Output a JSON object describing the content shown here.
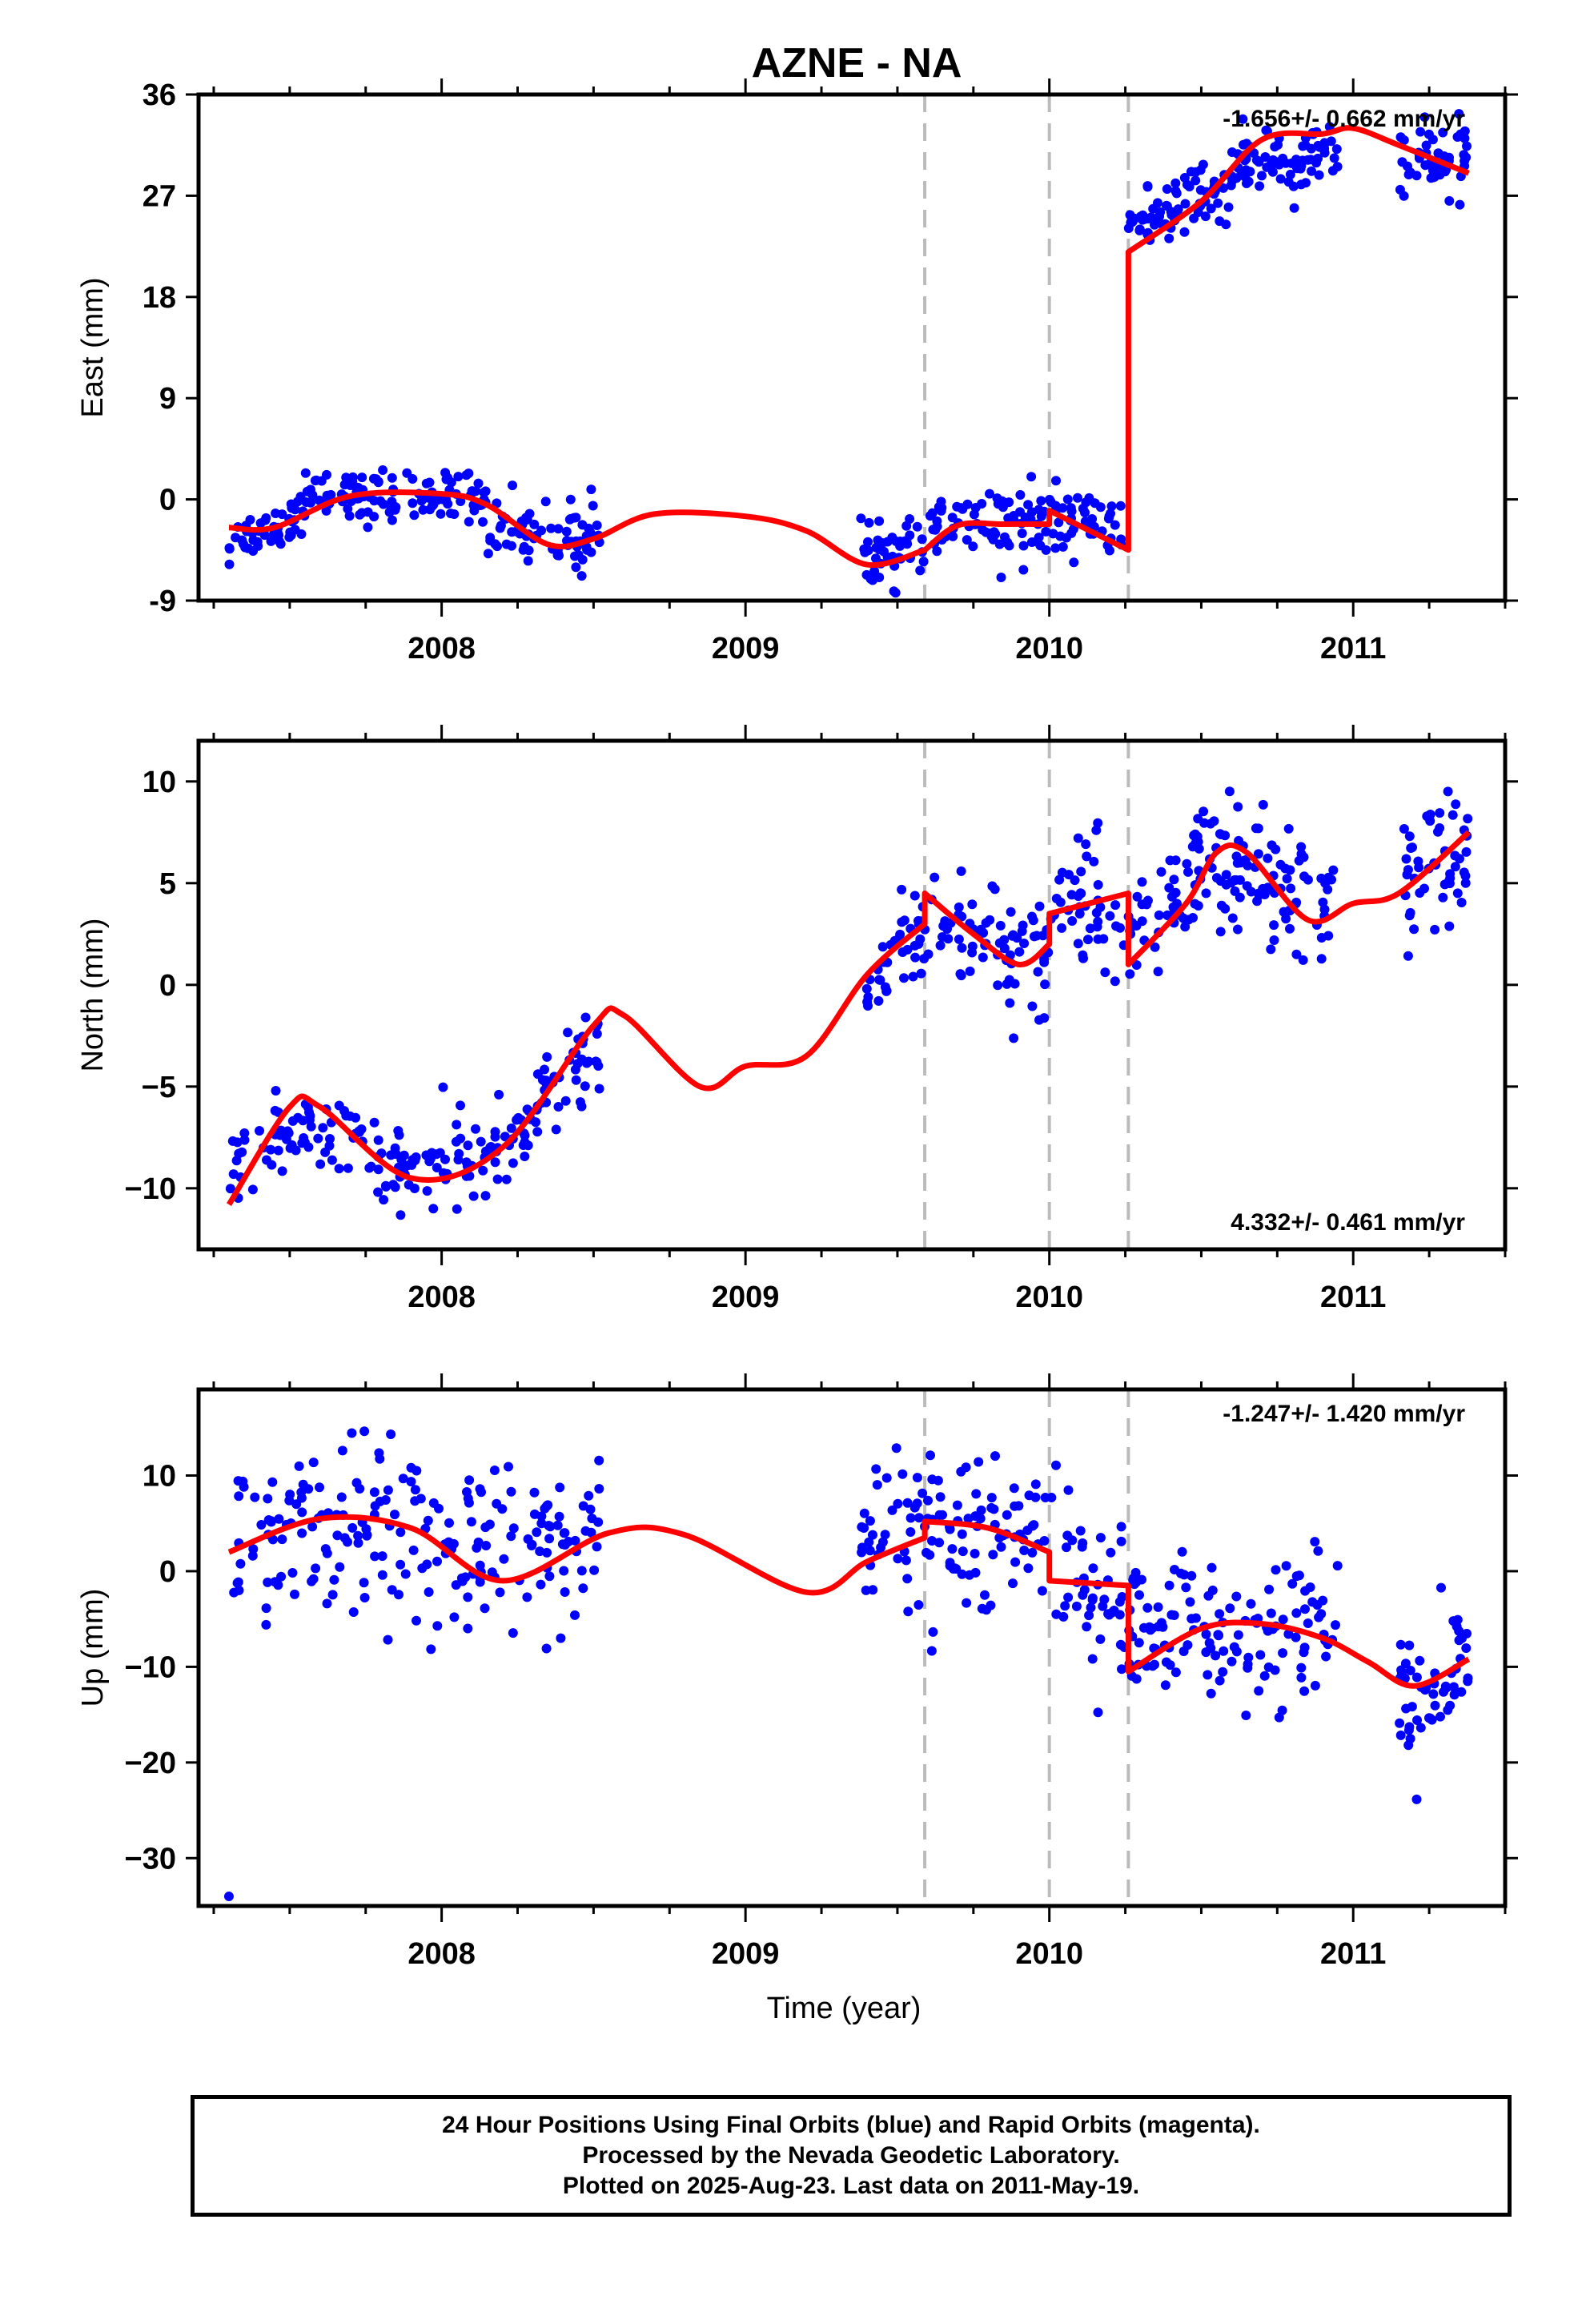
{
  "title": "AZNE - NA",
  "colors": {
    "points": "#0000ff",
    "fit": "#ff0000",
    "breaks": "#bbbbbb",
    "frame": "#000000"
  },
  "breaks": [
    2009.59,
    2010.0,
    2010.26
  ],
  "footer": {
    "line1": "24 Hour Positions Using Final Orbits (blue) and Rapid Orbits (magenta).",
    "line2": "Processed by the Nevada Geodetic Laboratory.",
    "line3": "Plotted on 2025-Aug-23. Last data on 2011-May-19."
  },
  "chart_data": [
    {
      "type": "scatter",
      "panel": "east",
      "ylabel": "East (mm)",
      "xlabel": "",
      "rate_text": "-1.656+/- 0.662 mm/yr",
      "rate_placement": "top-right",
      "xlim": [
        2007.2,
        2011.5
      ],
      "ylim": [
        -9,
        36
      ],
      "xticks": [
        "2008",
        "2009",
        "2010",
        "2011"
      ],
      "yticks": [
        "36",
        "27",
        "18",
        "9",
        "0",
        "-9"
      ],
      "point_groups": [
        {
          "t": [
            2007.3,
            2007.55
          ],
          "y": [
            -4,
            -1
          ],
          "noise": 1.1,
          "n": 50
        },
        {
          "t": [
            2007.55,
            2008.15
          ],
          "y": [
            0,
            0.5
          ],
          "noise": 1.1,
          "n": 110
        },
        {
          "t": [
            2008.15,
            2008.52
          ],
          "y": [
            -2.5,
            -3.5
          ],
          "noise": 1.5,
          "n": 70
        },
        {
          "t": [
            2009.38,
            2009.6
          ],
          "y": [
            -5.5,
            -4
          ],
          "noise": 1.4,
          "n": 45
        },
        {
          "t": [
            2009.6,
            2010.0
          ],
          "y": [
            -2,
            -2.5
          ],
          "noise": 1.6,
          "n": 75
        },
        {
          "t": [
            2010.0,
            2010.25
          ],
          "y": [
            -1.5,
            -3
          ],
          "noise": 1.5,
          "n": 45
        },
        {
          "t": [
            2010.26,
            2010.6
          ],
          "y": [
            24,
            28
          ],
          "noise": 1.3,
          "n": 80
        },
        {
          "t": [
            2010.6,
            2010.95
          ],
          "y": [
            29,
            31
          ],
          "noise": 1.5,
          "n": 80
        },
        {
          "t": [
            2011.15,
            2011.38
          ],
          "y": [
            30,
            30.5
          ],
          "noise": 1.6,
          "n": 50
        }
      ],
      "fit_segments": [
        {
          "x": [
            2007.3,
            2007.45,
            2007.7,
            2008.0,
            2008.15,
            2008.35,
            2008.5,
            2008.7,
            2009.0,
            2009.2,
            2009.4,
            2009.59
          ],
          "y": [
            -2.5,
            -2.5,
            0.3,
            0.5,
            -0.5,
            -4,
            -3.5,
            -1.3,
            -1.5,
            -2.8,
            -5.8,
            -4.5
          ]
        },
        {
          "x": [
            2009.59,
            2009.7,
            2009.85,
            2010.0
          ],
          "y": [
            -4.5,
            -2.3,
            -2.2,
            -2.2
          ]
        },
        {
          "x": [
            2010.0,
            2010.26
          ],
          "y": [
            -1,
            -4.5
          ]
        },
        {
          "x": [
            2010.26,
            2010.5,
            2010.7,
            2010.9,
            2011.0,
            2011.15,
            2011.38
          ],
          "y": [
            22,
            26.5,
            32,
            32.5,
            33,
            31.5,
            29
          ]
        }
      ]
    },
    {
      "type": "scatter",
      "panel": "north",
      "ylabel": "North (mm)",
      "xlabel": "",
      "rate_text": "4.332+/- 0.461 mm/yr",
      "rate_placement": "bottom-right",
      "xlim": [
        2007.2,
        2011.5
      ],
      "ylim": [
        -13,
        12
      ],
      "xticks": [
        "2008",
        "2009",
        "2010",
        "2011"
      ],
      "yticks": [
        "10",
        "5",
        "0",
        "−5",
        "−10"
      ],
      "point_groups": [
        {
          "t": [
            2007.3,
            2007.6
          ],
          "y": [
            -9.5,
            -6
          ],
          "noise": 1.0,
          "n": 45
        },
        {
          "t": [
            2007.6,
            2007.95
          ],
          "y": [
            -7,
            -9.5
          ],
          "noise": 1.0,
          "n": 55
        },
        {
          "t": [
            2007.95,
            2008.25
          ],
          "y": [
            -9,
            -8
          ],
          "noise": 1.2,
          "n": 50
        },
        {
          "t": [
            2008.25,
            2008.52
          ],
          "y": [
            -7,
            -3
          ],
          "noise": 1.0,
          "n": 55
        },
        {
          "t": [
            2009.38,
            2009.6
          ],
          "y": [
            -0.5,
            3
          ],
          "noise": 1.2,
          "n": 40
        },
        {
          "t": [
            2009.6,
            2010.0
          ],
          "y": [
            3,
            1.5
          ],
          "noise": 1.6,
          "n": 75
        },
        {
          "t": [
            2010.0,
            2010.25
          ],
          "y": [
            3.5,
            4.5
          ],
          "noise": 1.6,
          "n": 45
        },
        {
          "t": [
            2010.26,
            2010.55
          ],
          "y": [
            2,
            6.5
          ],
          "noise": 1.5,
          "n": 65
        },
        {
          "t": [
            2010.55,
            2010.95
          ],
          "y": [
            6,
            3
          ],
          "noise": 1.8,
          "n": 85
        },
        {
          "t": [
            2011.15,
            2011.38
          ],
          "y": [
            4.5,
            7
          ],
          "noise": 1.7,
          "n": 50
        }
      ],
      "fit_segments": [
        {
          "x": [
            2007.3,
            2007.5,
            2007.6,
            2007.9,
            2008.2,
            2008.5,
            2008.6,
            2008.85,
            2009.0,
            2009.2,
            2009.4,
            2009.59
          ],
          "y": [
            -10.8,
            -6,
            -6,
            -9.5,
            -8,
            -2,
            -1.5,
            -5,
            -4,
            -3.5,
            0.5,
            3
          ]
        },
        {
          "x": [
            2009.59,
            2009.75,
            2009.9,
            2010.0
          ],
          "y": [
            4.5,
            2.5,
            1,
            2
          ]
        },
        {
          "x": [
            2010.0,
            2010.26
          ],
          "y": [
            3.5,
            4.5
          ]
        },
        {
          "x": [
            2010.26,
            2010.45,
            2010.55,
            2010.65,
            2010.85,
            2011.0,
            2011.15,
            2011.38
          ],
          "y": [
            1,
            4,
            6.5,
            6.5,
            3.2,
            4,
            4.5,
            7.5
          ]
        }
      ]
    },
    {
      "type": "scatter",
      "panel": "up",
      "ylabel": "Up (mm)",
      "xlabel": "Time (year)",
      "rate_text": "-1.247+/- 1.420 mm/yr",
      "rate_placement": "top-right",
      "xlim": [
        2007.2,
        2011.5
      ],
      "ylim": [
        -35,
        19
      ],
      "xticks": [
        "2008",
        "2009",
        "2010",
        "2011"
      ],
      "yticks": [
        "10",
        "0",
        "−10",
        "−20",
        "−30"
      ],
      "point_groups": [
        {
          "t": [
            2007.3,
            2007.95
          ],
          "y": [
            3,
            5
          ],
          "noise": 4.5,
          "n": 110
        },
        {
          "t": [
            2007.95,
            2008.52
          ],
          "y": [
            1,
            3
          ],
          "noise": 4.0,
          "n": 100
        },
        {
          "t": [
            2009.38,
            2009.6
          ],
          "y": [
            4,
            5
          ],
          "noise": 4.0,
          "n": 40
        },
        {
          "t": [
            2009.6,
            2010.0
          ],
          "y": [
            5,
            4
          ],
          "noise": 4.0,
          "n": 75
        },
        {
          "t": [
            2010.0,
            2010.25
          ],
          "y": [
            1,
            -3
          ],
          "noise": 4.5,
          "n": 45
        },
        {
          "t": [
            2010.26,
            2010.95
          ],
          "y": [
            -5,
            -7
          ],
          "noise": 3.8,
          "n": 130
        },
        {
          "t": [
            2011.15,
            2011.38
          ],
          "y": [
            -15,
            -11
          ],
          "noise": 4.0,
          "n": 55
        }
      ],
      "extra_points": [
        {
          "t": 2007.3,
          "y": -34
        }
      ],
      "fit_segments": [
        {
          "x": [
            2007.3,
            2007.6,
            2007.9,
            2008.2,
            2008.55,
            2008.8,
            2009.2,
            2009.4,
            2009.59
          ],
          "y": [
            2,
            5.5,
            4.5,
            -1,
            4,
            3.8,
            -2.2,
            1,
            3.5
          ]
        },
        {
          "x": [
            2009.59,
            2009.8,
            2010.0
          ],
          "y": [
            5.2,
            4.5,
            2
          ]
        },
        {
          "x": [
            2010.0,
            2010.26
          ],
          "y": [
            -1,
            -1.5
          ]
        },
        {
          "x": [
            2010.26,
            2010.5,
            2010.7,
            2010.9,
            2011.05,
            2011.2,
            2011.38
          ],
          "y": [
            -10.5,
            -6,
            -5.5,
            -7,
            -9.5,
            -12,
            -9.2
          ]
        }
      ]
    }
  ]
}
